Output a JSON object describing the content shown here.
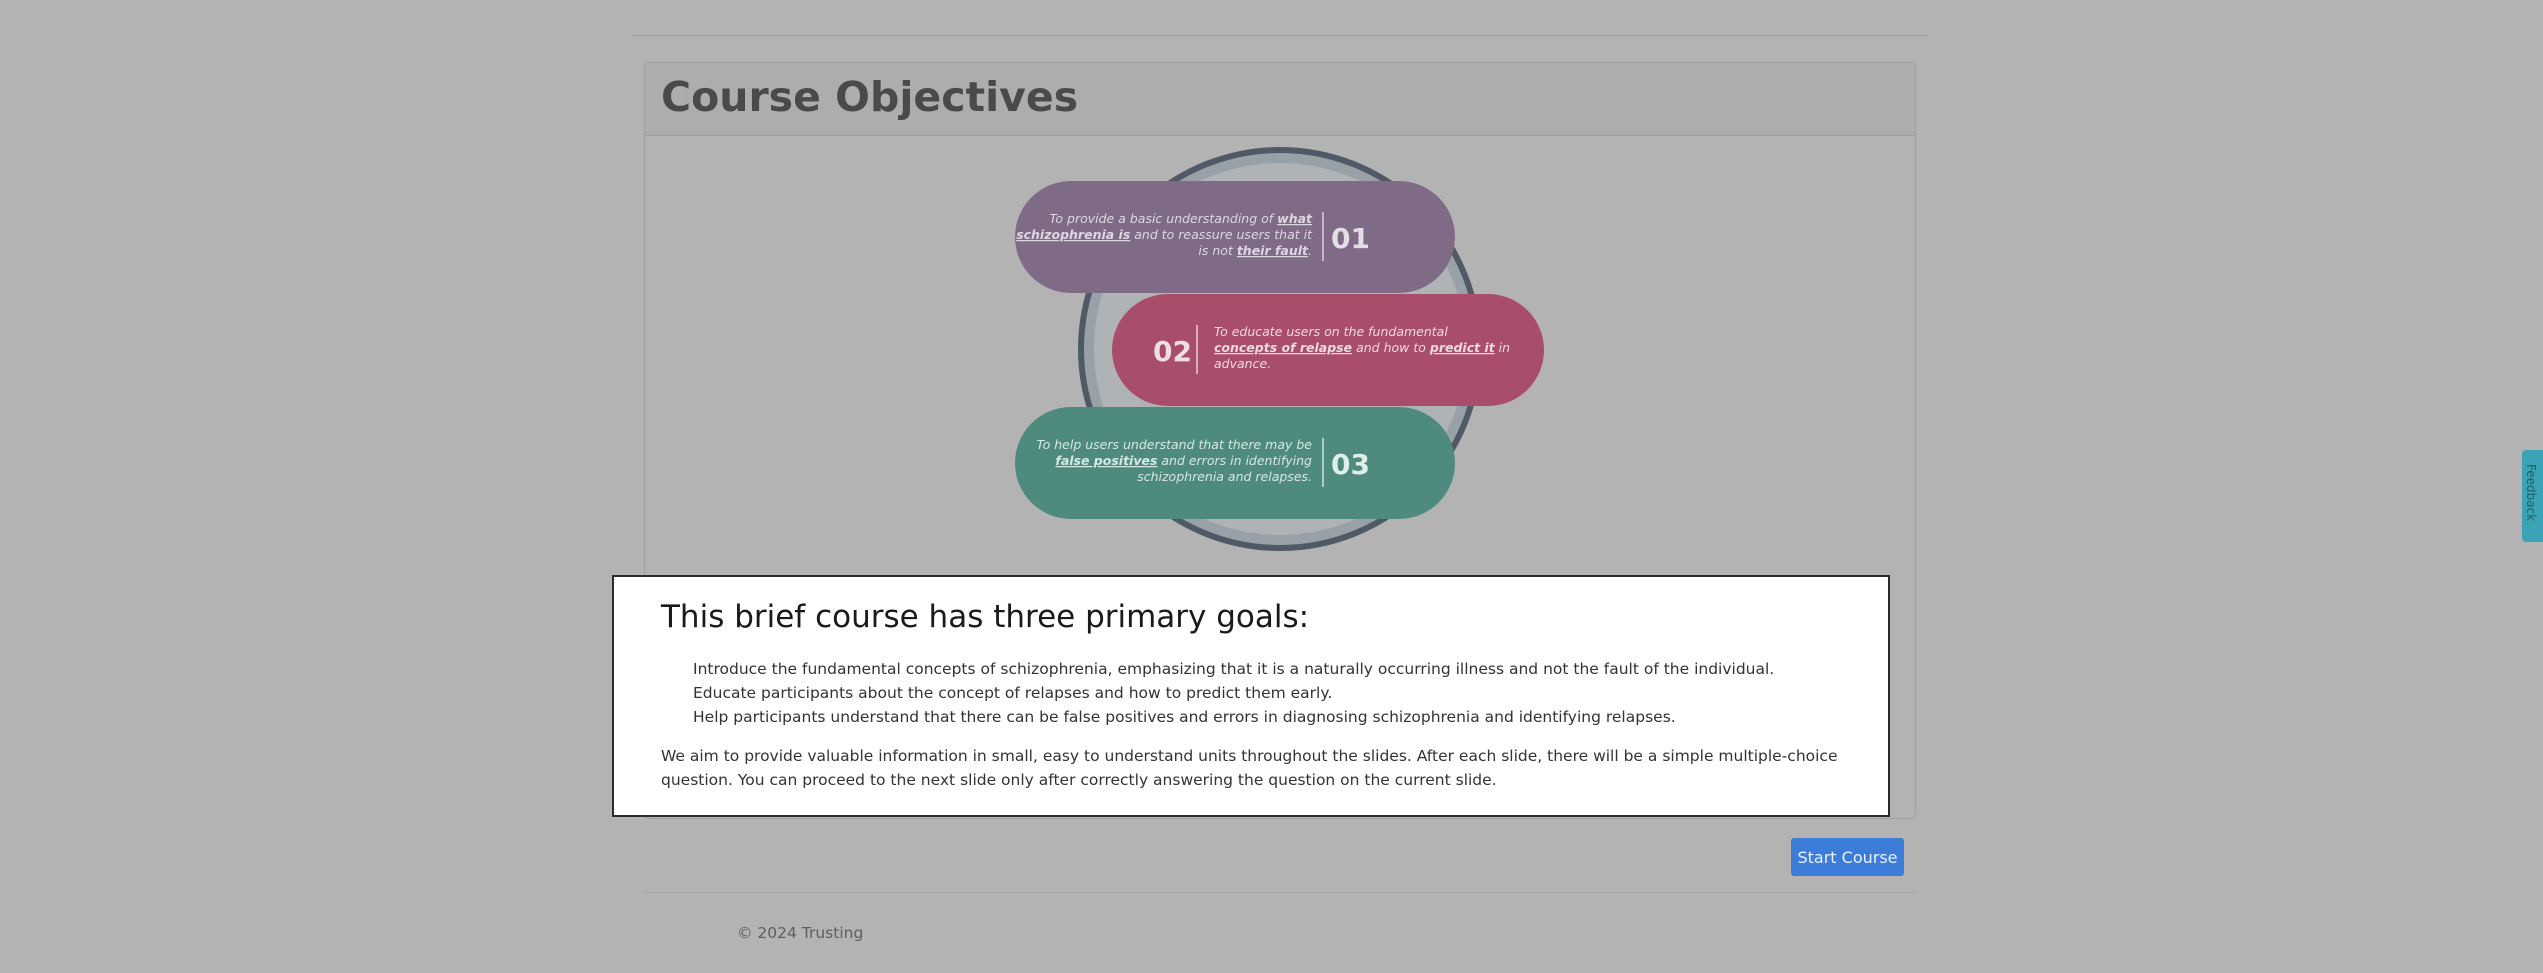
{
  "card": {
    "title": "Course Objectives"
  },
  "objectives": [
    {
      "number": "01",
      "text": [
        {
          "t": "To provide a basic understanding of "
        },
        {
          "t": "what",
          "em": true
        },
        {
          "br": true
        },
        {
          "t": "schizophrenia is",
          "em": true
        },
        {
          "t": " and to reassure users that it"
        },
        {
          "br": true
        },
        {
          "t": "is not "
        },
        {
          "t": "their fault",
          "em": true
        },
        {
          "t": "."
        }
      ],
      "color": "#7f6b86"
    },
    {
      "number": "02",
      "text": [
        {
          "t": "To educate users on the fundamental"
        },
        {
          "br": true
        },
        {
          "t": "concepts of relapse",
          "em": true
        },
        {
          "t": " and how to "
        },
        {
          "t": "predict it",
          "em": true
        },
        {
          "t": " in"
        },
        {
          "br": true
        },
        {
          "t": "advance."
        }
      ],
      "color": "#a94e6a"
    },
    {
      "number": "03",
      "text": [
        {
          "t": "To help users understand that there may be"
        },
        {
          "br": true
        },
        {
          "t": "false positives",
          "em": true
        },
        {
          "t": " and errors in identifying"
        },
        {
          "br": true
        },
        {
          "t": "schizophrenia and relapses."
        }
      ],
      "color": "#4e8b7e"
    }
  ],
  "modal": {
    "heading": "This brief course has three primary goals:",
    "goals": [
      "Introduce the fundamental concepts of schizophrenia, emphasizing that it is a naturally occurring illness and not the fault of the individual.",
      "Educate participants about the concept of relapses and how to predict them early.",
      "Help participants understand that there can be false positives and errors in diagnosing schizophrenia and identifying relapses."
    ],
    "description": "We aim to provide valuable information in small, easy to understand units throughout the slides. After each slide, there will be a simple multiple-choice question. You can proceed to the next slide only after correctly answering the question on the current slide."
  },
  "actions": {
    "start_course": "Start Course"
  },
  "footer": {
    "copyright": "© 2024 Trusting"
  },
  "feedback": {
    "label": "Feedback"
  },
  "colors": {
    "overlay_bg": "#b3b3b3",
    "primary_button": "#3b7dd8",
    "feedback_tab": "#3aa3b6"
  }
}
